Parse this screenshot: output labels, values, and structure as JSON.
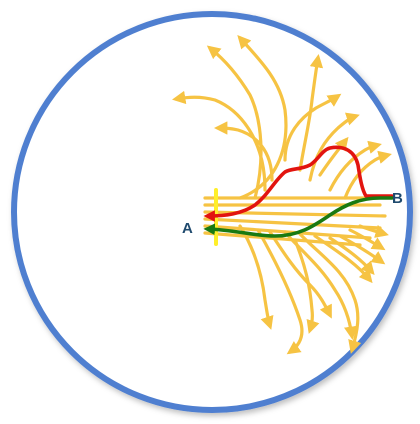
{
  "labels": {
    "point_a": "A",
    "point_b": "B"
  },
  "colors": {
    "circle_stroke": "#4f7fd0",
    "fan_paths": "#f6c343",
    "gate_marker": "#ffef2a",
    "red_path": "#e2140f",
    "green_path": "#1a7a12",
    "label_text": "#1f4a6e"
  },
  "paths": [
    {
      "name": "red-path",
      "from": "B",
      "to": "A",
      "color": "#e2140f"
    },
    {
      "name": "green-path",
      "from": "B",
      "to": "A",
      "color": "#1a7a12"
    }
  ]
}
